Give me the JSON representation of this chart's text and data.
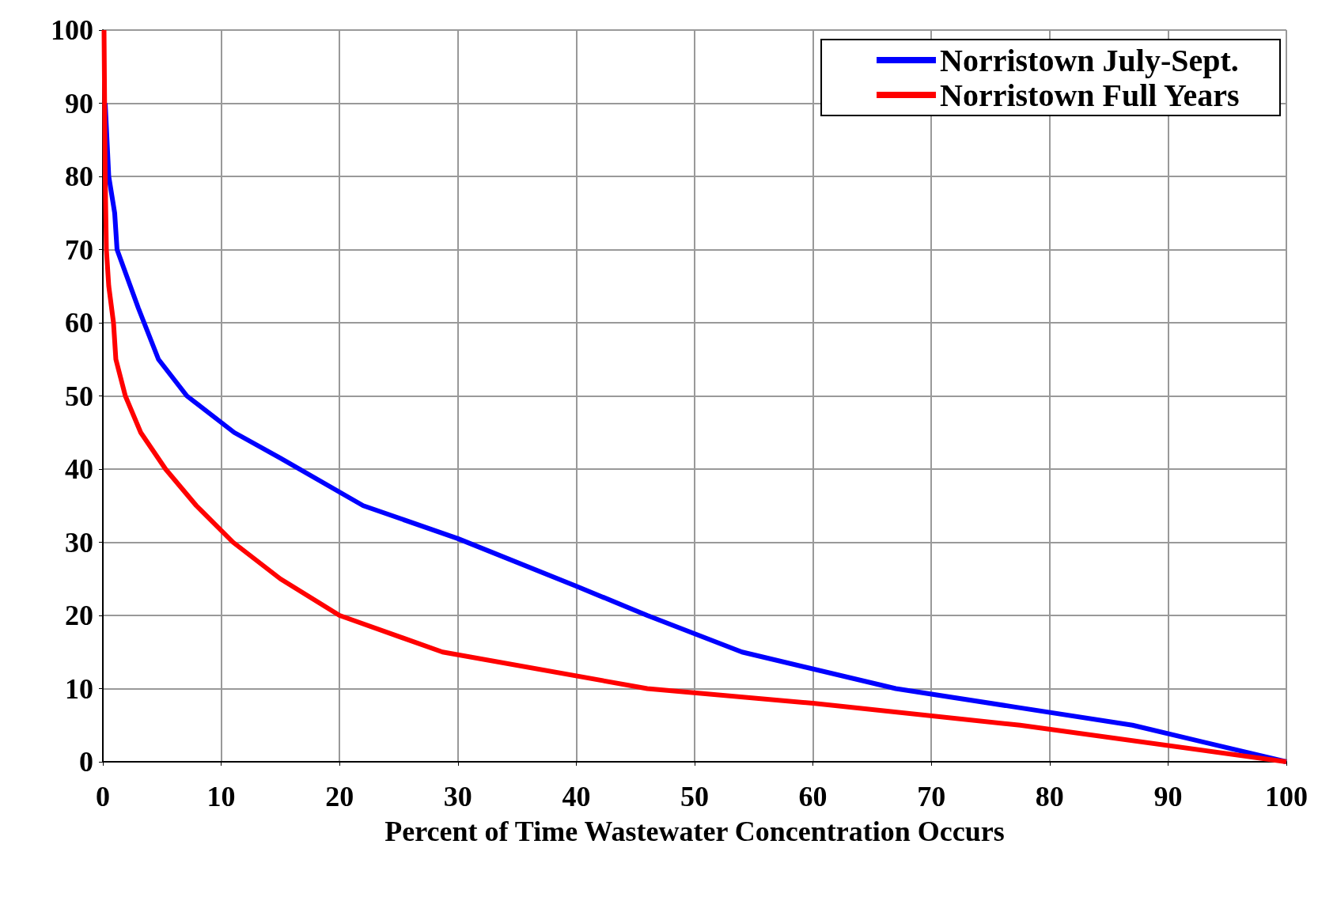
{
  "chart_data": {
    "type": "line",
    "xlabel": "Percent of Time Wastewater Concentration Occurs",
    "xlim": [
      0,
      100
    ],
    "xticks": [
      0,
      10,
      20,
      30,
      40,
      50,
      60,
      70,
      80,
      90,
      100
    ],
    "ylim": [
      0,
      100
    ],
    "yticks": [
      0,
      10,
      20,
      30,
      40,
      50,
      60,
      70,
      80,
      90,
      100
    ],
    "grid": true,
    "legend": "top right",
    "line_style": "solid",
    "marker": "none",
    "series": [
      {
        "name": "Norristown July-Sept.",
        "color": "#0000ff",
        "x": [
          0.2,
          0.5,
          1,
          1.2,
          3,
          4.7,
          7.1,
          11.1,
          15,
          22,
          30,
          40,
          46,
          54,
          67,
          77,
          87,
          100
        ],
        "values": [
          90,
          80,
          75,
          70,
          62,
          55,
          50,
          45,
          41.5,
          35,
          30.5,
          24,
          20,
          15,
          10,
          7.5,
          5,
          0
        ]
      },
      {
        "name": "Norristown Full Years",
        "color": "#ff0000",
        "x": [
          0.1,
          0.2,
          0.3,
          0.5,
          0.9,
          1.1,
          1.9,
          3.2,
          5.3,
          7.9,
          11,
          15,
          20,
          28.7,
          46,
          60,
          77.5,
          100
        ],
        "values": [
          100,
          80,
          70,
          65,
          60,
          55,
          50,
          45,
          40,
          35,
          30,
          25,
          20,
          15,
          10,
          8,
          5,
          0
        ]
      }
    ]
  }
}
